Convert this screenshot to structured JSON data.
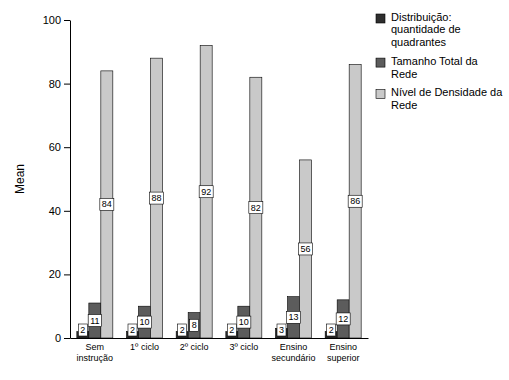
{
  "chart_data": {
    "type": "bar",
    "y_label": "Mean",
    "categories": [
      "Sem instrução",
      "1º ciclo",
      "2º ciclo",
      "3º ciclo",
      "Ensino secundário",
      "Ensino superior"
    ],
    "series": [
      {
        "name": "Distribuição: quantidade de quadrantes",
        "color": "#2e2e2e",
        "values": [
          2,
          2,
          2,
          2,
          3,
          2
        ]
      },
      {
        "name": "Tamanho Total da Rede",
        "color": "#5c5c5c",
        "values": [
          11,
          10,
          8,
          10,
          13,
          12
        ]
      },
      {
        "name": "Nível de Densidade da Rede",
        "color": "#c9c9c9",
        "values": [
          84,
          88,
          92,
          82,
          56,
          86
        ]
      }
    ],
    "ylim": [
      0,
      100
    ],
    "yticks": [
      0,
      20,
      40,
      60,
      80,
      100
    ],
    "grid": false,
    "data_labels": true,
    "legend": "right"
  }
}
